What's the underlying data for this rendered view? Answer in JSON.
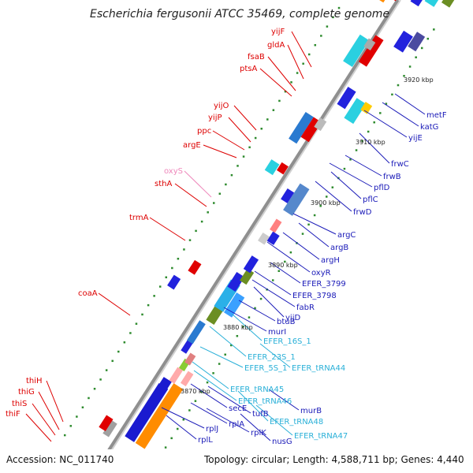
{
  "title": "Escherichia fergusonii ATCC 35469, complete genome",
  "footer": {
    "accession": "Accession: NC_011740",
    "topology": "Topology: circular; Length: 4,588,711 bp; Genes: 4,440"
  },
  "colors": {
    "left_label": "#dd0000",
    "right_label": "#1a1ab8",
    "rna_label": "#2ab0d8",
    "pale_label": "#ee88bb",
    "backbone": "#8f8f8f",
    "tick": "#2e8b2e"
  },
  "scale_labels": [
    "3860 kbp",
    "3870 kbp",
    "3880 kbp",
    "3890 kbp",
    "3900 kbp",
    "3910 kbp",
    "3920 kbp"
  ],
  "left_labels": [
    {
      "text": "yijF",
      "color": "left"
    },
    {
      "text": "gldA",
      "color": "left"
    },
    {
      "text": "fsaB",
      "color": "left"
    },
    {
      "text": "ptsA",
      "color": "left"
    },
    {
      "text": "yijO",
      "color": "left"
    },
    {
      "text": "yijP",
      "color": "left"
    },
    {
      "text": "ppc",
      "color": "left"
    },
    {
      "text": "argE",
      "color": "left"
    },
    {
      "text": "oxyS",
      "color": "pale"
    },
    {
      "text": "sthA",
      "color": "left"
    },
    {
      "text": "trmA",
      "color": "left"
    },
    {
      "text": "coaA",
      "color": "left"
    },
    {
      "text": "thiH",
      "color": "left"
    },
    {
      "text": "thiG",
      "color": "left"
    },
    {
      "text": "thiS",
      "color": "left"
    },
    {
      "text": "thiF",
      "color": "left"
    }
  ],
  "right_labels": [
    {
      "text": "metF",
      "color": "right"
    },
    {
      "text": "katG",
      "color": "right"
    },
    {
      "text": "yijE",
      "color": "right"
    },
    {
      "text": "frwC",
      "color": "right"
    },
    {
      "text": "frwB",
      "color": "right"
    },
    {
      "text": "pflD",
      "color": "right"
    },
    {
      "text": "pflC",
      "color": "right"
    },
    {
      "text": "frwD",
      "color": "right"
    },
    {
      "text": "argC",
      "color": "right"
    },
    {
      "text": "argB",
      "color": "right"
    },
    {
      "text": "argH",
      "color": "right"
    },
    {
      "text": "oxyR",
      "color": "right"
    },
    {
      "text": "EFER_3799",
      "color": "right"
    },
    {
      "text": "EFER_3798",
      "color": "right"
    },
    {
      "text": "fabR",
      "color": "right"
    },
    {
      "text": "yijD",
      "color": "right"
    },
    {
      "text": "btuB",
      "color": "right"
    },
    {
      "text": "murI",
      "color": "right"
    },
    {
      "text": "EFER_16S_1",
      "color": "rna"
    },
    {
      "text": "EFER_23S_1",
      "color": "rna"
    },
    {
      "text": "EFER_5S_1",
      "color": "rna"
    },
    {
      "text": "EFER_tRNA44",
      "color": "rna"
    },
    {
      "text": "EFER_tRNA45",
      "color": "rna"
    },
    {
      "text": "EFER_tRNA46",
      "color": "rna"
    },
    {
      "text": "murB",
      "color": "right"
    },
    {
      "text": "secE",
      "color": "right"
    },
    {
      "text": "tufB",
      "color": "right"
    },
    {
      "text": "EFER_tRNA48",
      "color": "rna"
    },
    {
      "text": "rplA",
      "color": "right"
    },
    {
      "text": "rplK",
      "color": "right"
    },
    {
      "text": "nusG",
      "color": "right"
    },
    {
      "text": "EFER_tRNA47",
      "color": "rna"
    },
    {
      "text": "rplJ",
      "color": "right"
    },
    {
      "text": "rplL",
      "color": "right"
    }
  ]
}
